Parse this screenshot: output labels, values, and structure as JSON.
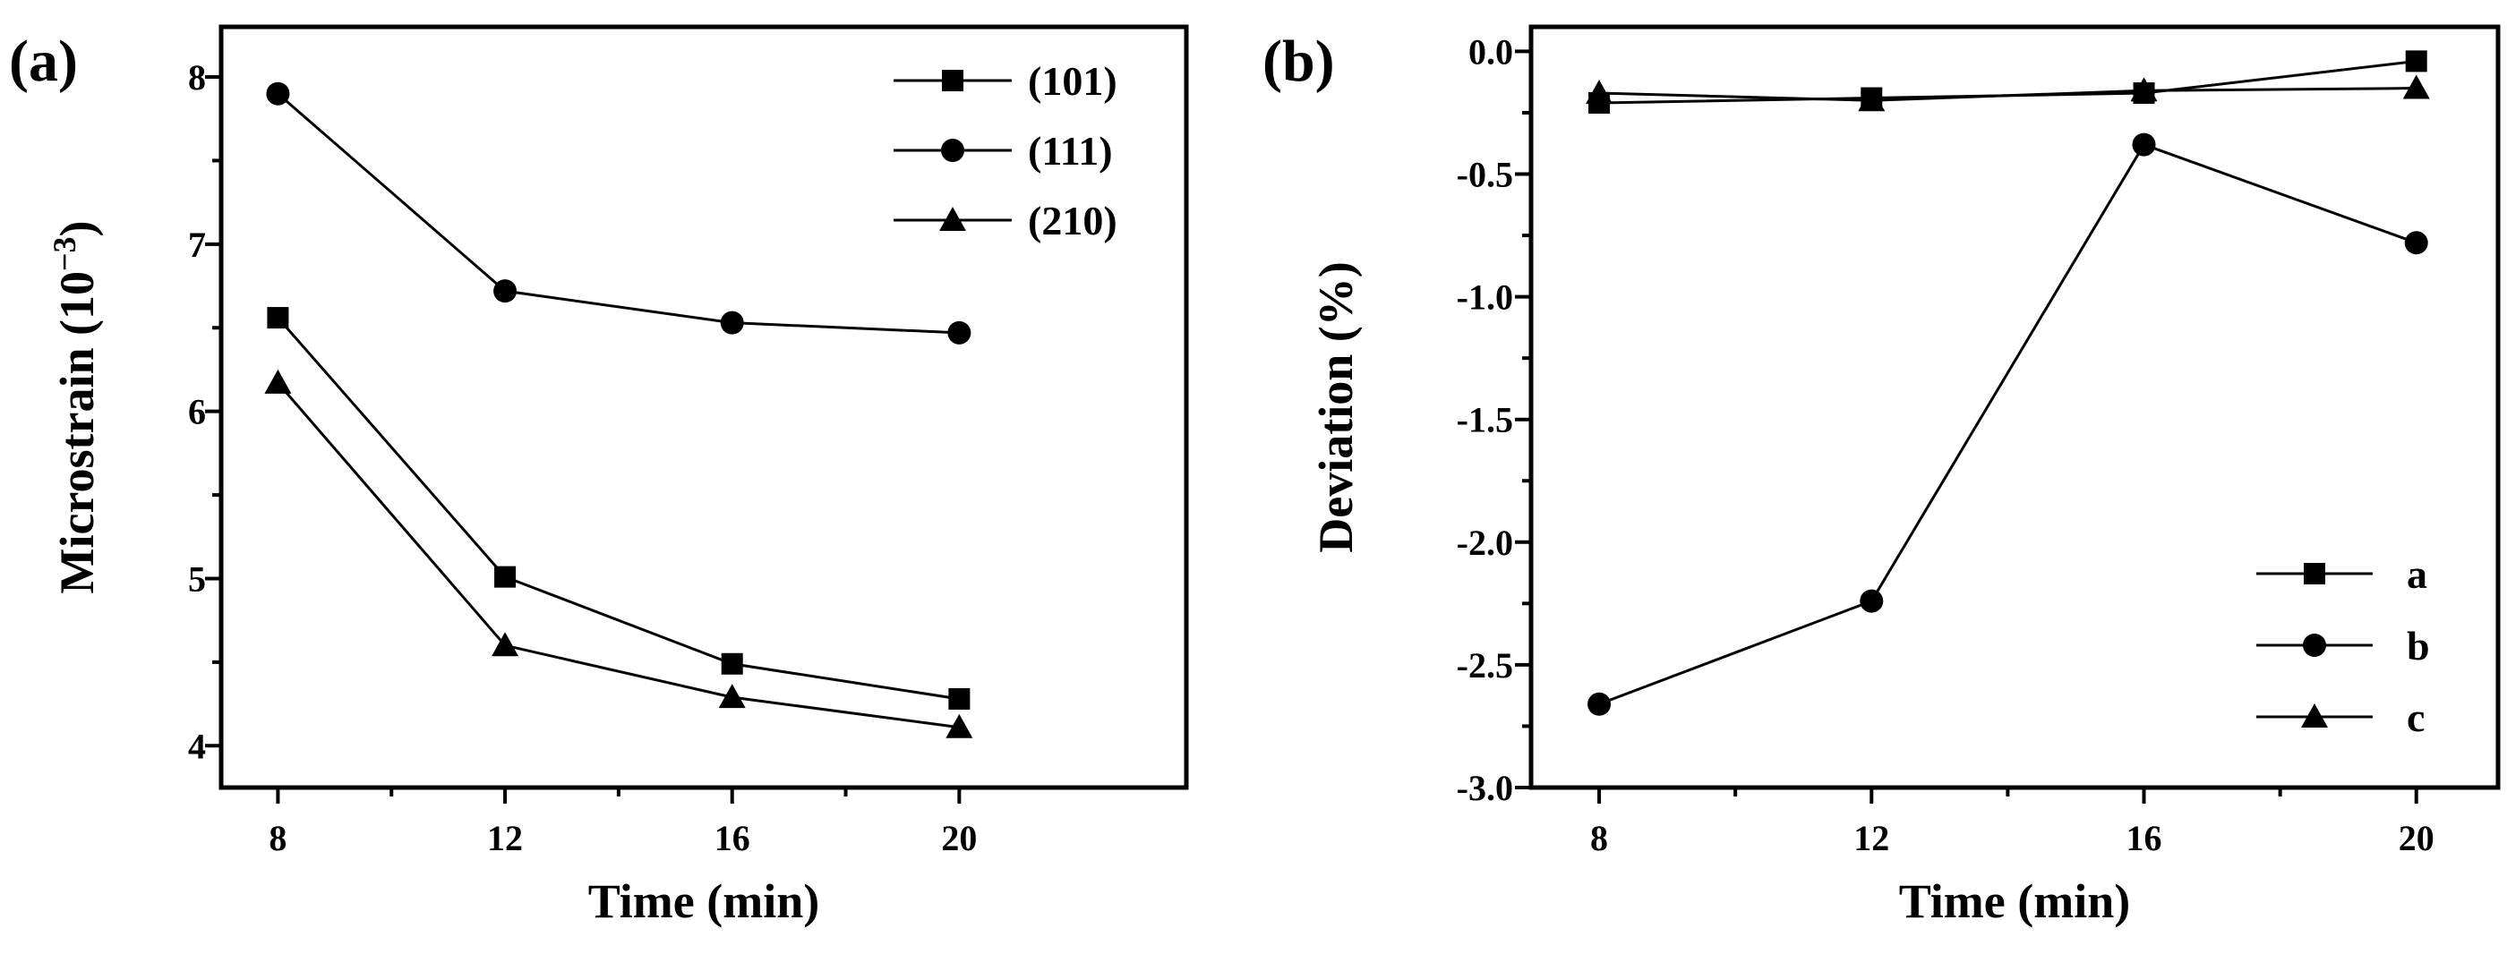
{
  "chart_data": [
    {
      "type": "line",
      "panel_label": "(a)",
      "xlabel": "Time (min)",
      "ylabel": "Microstrain (10",
      "ylabel_sup": "−3",
      "ylabel_close": ")",
      "x": [
        8,
        12,
        16,
        20
      ],
      "x_ticks": [
        "8",
        "12",
        "16",
        "20"
      ],
      "xlim": [
        7,
        24
      ],
      "ylim": [
        3.75,
        8.3
      ],
      "y_ticks": [
        "4",
        "5",
        "6",
        "7",
        "8"
      ],
      "legend_position": "top-right",
      "series": [
        {
          "name": "(101)",
          "marker": "square",
          "values": [
            6.56,
            5.01,
            4.49,
            4.28
          ]
        },
        {
          "name": "(111)",
          "marker": "circle",
          "values": [
            7.9,
            6.72,
            6.53,
            6.47
          ]
        },
        {
          "name": "(210)",
          "marker": "triangle",
          "values": [
            6.17,
            4.6,
            4.29,
            4.11
          ]
        }
      ]
    },
    {
      "type": "line",
      "panel_label": "(b)",
      "xlabel": "Time (min)",
      "ylabel": "Deviation (%)",
      "x": [
        8,
        12,
        16,
        20
      ],
      "x_ticks": [
        "8",
        "12",
        "16",
        "20"
      ],
      "xlim": [
        7,
        21.2
      ],
      "ylim": [
        -3.0,
        0.1
      ],
      "y_ticks": [
        "0.0",
        "-0.5",
        "-1.0",
        "-1.5",
        "-2.0",
        "-2.5",
        "-3.0"
      ],
      "legend_position": "bottom-right",
      "series": [
        {
          "name": "a",
          "marker": "square",
          "values": [
            -0.21,
            -0.19,
            -0.17,
            -0.04
          ]
        },
        {
          "name": "b",
          "marker": "circle",
          "values": [
            -2.66,
            -2.24,
            -0.38,
            -0.78
          ]
        },
        {
          "name": "c",
          "marker": "triangle",
          "values": [
            -0.17,
            -0.2,
            -0.16,
            -0.15
          ]
        }
      ]
    }
  ]
}
